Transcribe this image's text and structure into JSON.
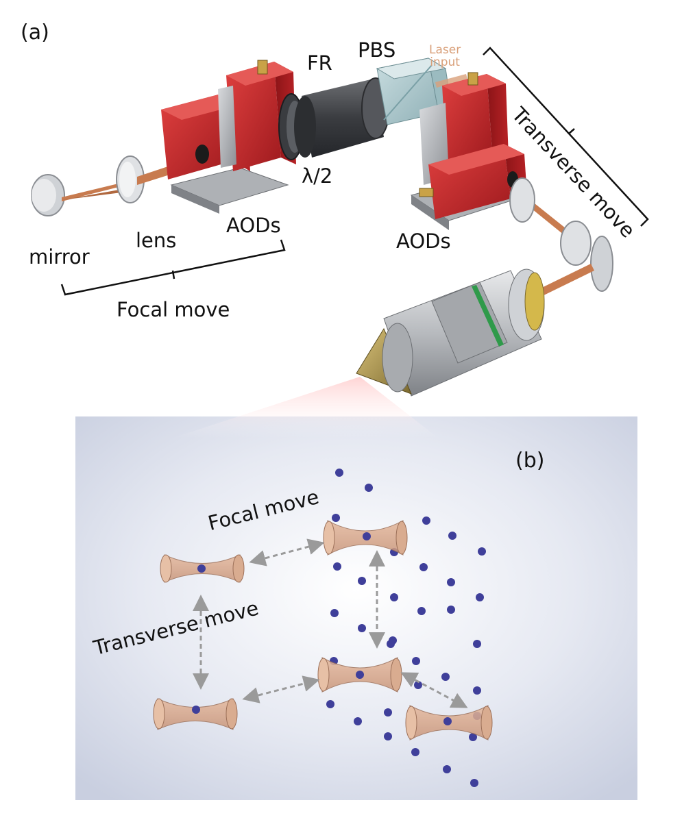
{
  "panels": {
    "a": "(a)",
    "b": "(b)"
  },
  "panel_a_labels": {
    "fr": "FR",
    "pbs": "PBS",
    "laser_input_line1": "Laser",
    "laser_input_line2": "input",
    "half_wave": "λ/2",
    "aods_left": "AODs",
    "aods_right": "AODs",
    "lens": "lens",
    "mirror": "mirror",
    "focal_move": "Focal move",
    "transverse_move": "Transverse move"
  },
  "panel_b_labels": {
    "focal_move": "Focal move",
    "transverse_move": "Transverse move"
  },
  "colors": {
    "aod_red": "#c8262a",
    "beam_copper": "#c87b4f",
    "atom_blue": "#3f3f9a",
    "tweezer_fill": "#d8a98c",
    "arrow_gray": "#9a9a9a"
  }
}
